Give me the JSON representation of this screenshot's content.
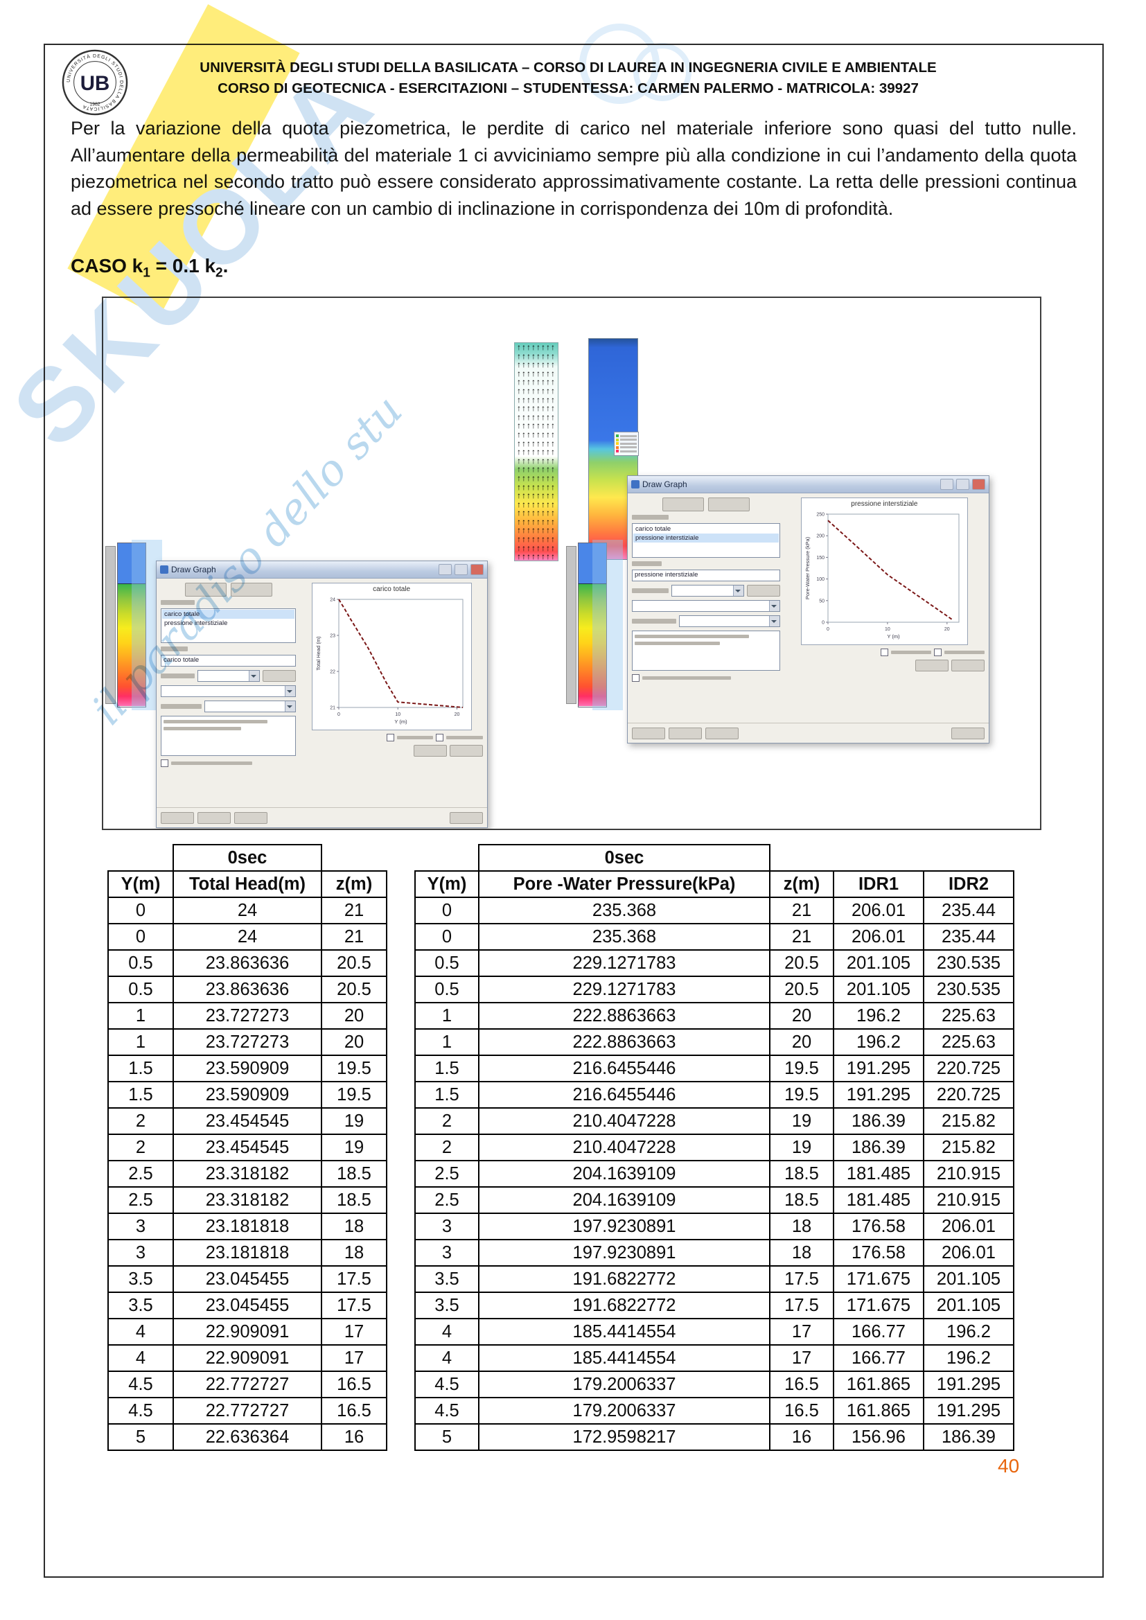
{
  "header": {
    "line1": "UNIVERSITÀ DEGLI STUDI DELLA BASILICATA – CORSO DI LAUREA IN INGEGNERIA CIVILE E AMBIENTALE",
    "line2": "CORSO DI GEOTECNICA - ESERCITAZIONI – STUDENTESSA: CARMEN PALERMO - MATRICOLA: 39927",
    "logo": {
      "monogram": "UB",
      "ring_text": "UNIVERSITÀ DEGLI STUDI DELLA BASILICATA",
      "year": "1982"
    }
  },
  "paragraph": "Per la variazione della quota piezometrica, le perdite di carico nel materiale inferiore sono quasi del tutto nulle. All’aumentare della permeabilità del materiale 1 ci avviciniamo sempre più alla condizione in cui l’andamento della quota piezometrica nel secondo tratto può essere considerato approssimativamente costante. La retta delle pressioni continua ad essere pressoché lineare con un cambio di inclinazione in corrispondenza dei 10m di profondità.",
  "heading": {
    "p1": "CASO k",
    "s1": "1",
    "p2": " = 0.1 k",
    "s2": "2",
    "p3": "."
  },
  "watermark": {
    "word": "SKUOLA",
    "script": "il paradiso dello stu",
    "band_color": "#ffe85a",
    "blue": "#cfe2f3"
  },
  "figure": {
    "window_title": "Draw Graph",
    "graph_list": [
      "carico totale",
      "pressione interstiziale"
    ],
    "charts": [
      {
        "title": "carico totale",
        "xlabel": "Y (m)",
        "ylabel": "Total Head (m)",
        "x_range": [
          0,
          21
        ],
        "y_range": [
          21,
          24
        ],
        "x_ticks": [
          0,
          10,
          20
        ],
        "y_ticks": [
          21,
          22,
          23,
          24
        ],
        "points": [
          [
            0,
            24
          ],
          [
            1,
            23.73
          ],
          [
            2,
            23.45
          ],
          [
            3,
            23.18
          ],
          [
            4,
            22.91
          ],
          [
            5,
            22.64
          ],
          [
            8,
            21.7
          ],
          [
            10,
            21.15
          ],
          [
            21,
            21.0
          ]
        ]
      },
      {
        "title": "pressione interstiziale",
        "xlabel": "Y (m)",
        "ylabel": "Pore-Water Pressure (kPa)",
        "x_range": [
          0,
          22
        ],
        "y_range": [
          0,
          250
        ],
        "x_ticks": [
          0,
          10,
          20
        ],
        "y_ticks": [
          0,
          50,
          100,
          150,
          200,
          250
        ],
        "points": [
          [
            0,
            235.4
          ],
          [
            5,
            173
          ],
          [
            10,
            110
          ],
          [
            21,
            5
          ]
        ]
      }
    ]
  },
  "tables": {
    "left": {
      "group_header": "0sec",
      "columns": [
        "Y(m)",
        "Total Head(m)",
        "z(m)"
      ],
      "rows": [
        [
          "0",
          "24",
          "21"
        ],
        [
          "0",
          "24",
          "21"
        ],
        [
          "0.5",
          "23.863636",
          "20.5"
        ],
        [
          "0.5",
          "23.863636",
          "20.5"
        ],
        [
          "1",
          "23.727273",
          "20"
        ],
        [
          "1",
          "23.727273",
          "20"
        ],
        [
          "1.5",
          "23.590909",
          "19.5"
        ],
        [
          "1.5",
          "23.590909",
          "19.5"
        ],
        [
          "2",
          "23.454545",
          "19"
        ],
        [
          "2",
          "23.454545",
          "19"
        ],
        [
          "2.5",
          "23.318182",
          "18.5"
        ],
        [
          "2.5",
          "23.318182",
          "18.5"
        ],
        [
          "3",
          "23.181818",
          "18"
        ],
        [
          "3",
          "23.181818",
          "18"
        ],
        [
          "3.5",
          "23.045455",
          "17.5"
        ],
        [
          "3.5",
          "23.045455",
          "17.5"
        ],
        [
          "4",
          "22.909091",
          "17"
        ],
        [
          "4",
          "22.909091",
          "17"
        ],
        [
          "4.5",
          "22.772727",
          "16.5"
        ],
        [
          "4.5",
          "22.772727",
          "16.5"
        ],
        [
          "5",
          "22.636364",
          "16"
        ]
      ]
    },
    "right": {
      "group_header": "0sec",
      "columns": [
        "Y(m)",
        "Pore -Water Pressure(kPa)",
        "z(m)",
        "IDR1",
        "IDR2"
      ],
      "rows": [
        [
          "0",
          "235.368",
          "21",
          "206.01",
          "235.44"
        ],
        [
          "0",
          "235.368",
          "21",
          "206.01",
          "235.44"
        ],
        [
          "0.5",
          "229.1271783",
          "20.5",
          "201.105",
          "230.535"
        ],
        [
          "0.5",
          "229.1271783",
          "20.5",
          "201.105",
          "230.535"
        ],
        [
          "1",
          "222.8863663",
          "20",
          "196.2",
          "225.63"
        ],
        [
          "1",
          "222.8863663",
          "20",
          "196.2",
          "225.63"
        ],
        [
          "1.5",
          "216.6455446",
          "19.5",
          "191.295",
          "220.725"
        ],
        [
          "1.5",
          "216.6455446",
          "19.5",
          "191.295",
          "220.725"
        ],
        [
          "2",
          "210.4047228",
          "19",
          "186.39",
          "215.82"
        ],
        [
          "2",
          "210.4047228",
          "19",
          "186.39",
          "215.82"
        ],
        [
          "2.5",
          "204.1639109",
          "18.5",
          "181.485",
          "210.915"
        ],
        [
          "2.5",
          "204.1639109",
          "18.5",
          "181.485",
          "210.915"
        ],
        [
          "3",
          "197.9230891",
          "18",
          "176.58",
          "206.01"
        ],
        [
          "3",
          "197.9230891",
          "18",
          "176.58",
          "206.01"
        ],
        [
          "3.5",
          "191.6822772",
          "17.5",
          "171.675",
          "201.105"
        ],
        [
          "3.5",
          "191.6822772",
          "17.5",
          "171.675",
          "201.105"
        ],
        [
          "4",
          "185.4414554",
          "17",
          "166.77",
          "196.2"
        ],
        [
          "4",
          "185.4414554",
          "17",
          "166.77",
          "196.2"
        ],
        [
          "4.5",
          "179.2006337",
          "16.5",
          "161.865",
          "191.295"
        ],
        [
          "4.5",
          "179.2006337",
          "16.5",
          "161.865",
          "191.295"
        ],
        [
          "5",
          "172.9598217",
          "16",
          "156.96",
          "186.39"
        ]
      ]
    }
  },
  "page_number": "40"
}
